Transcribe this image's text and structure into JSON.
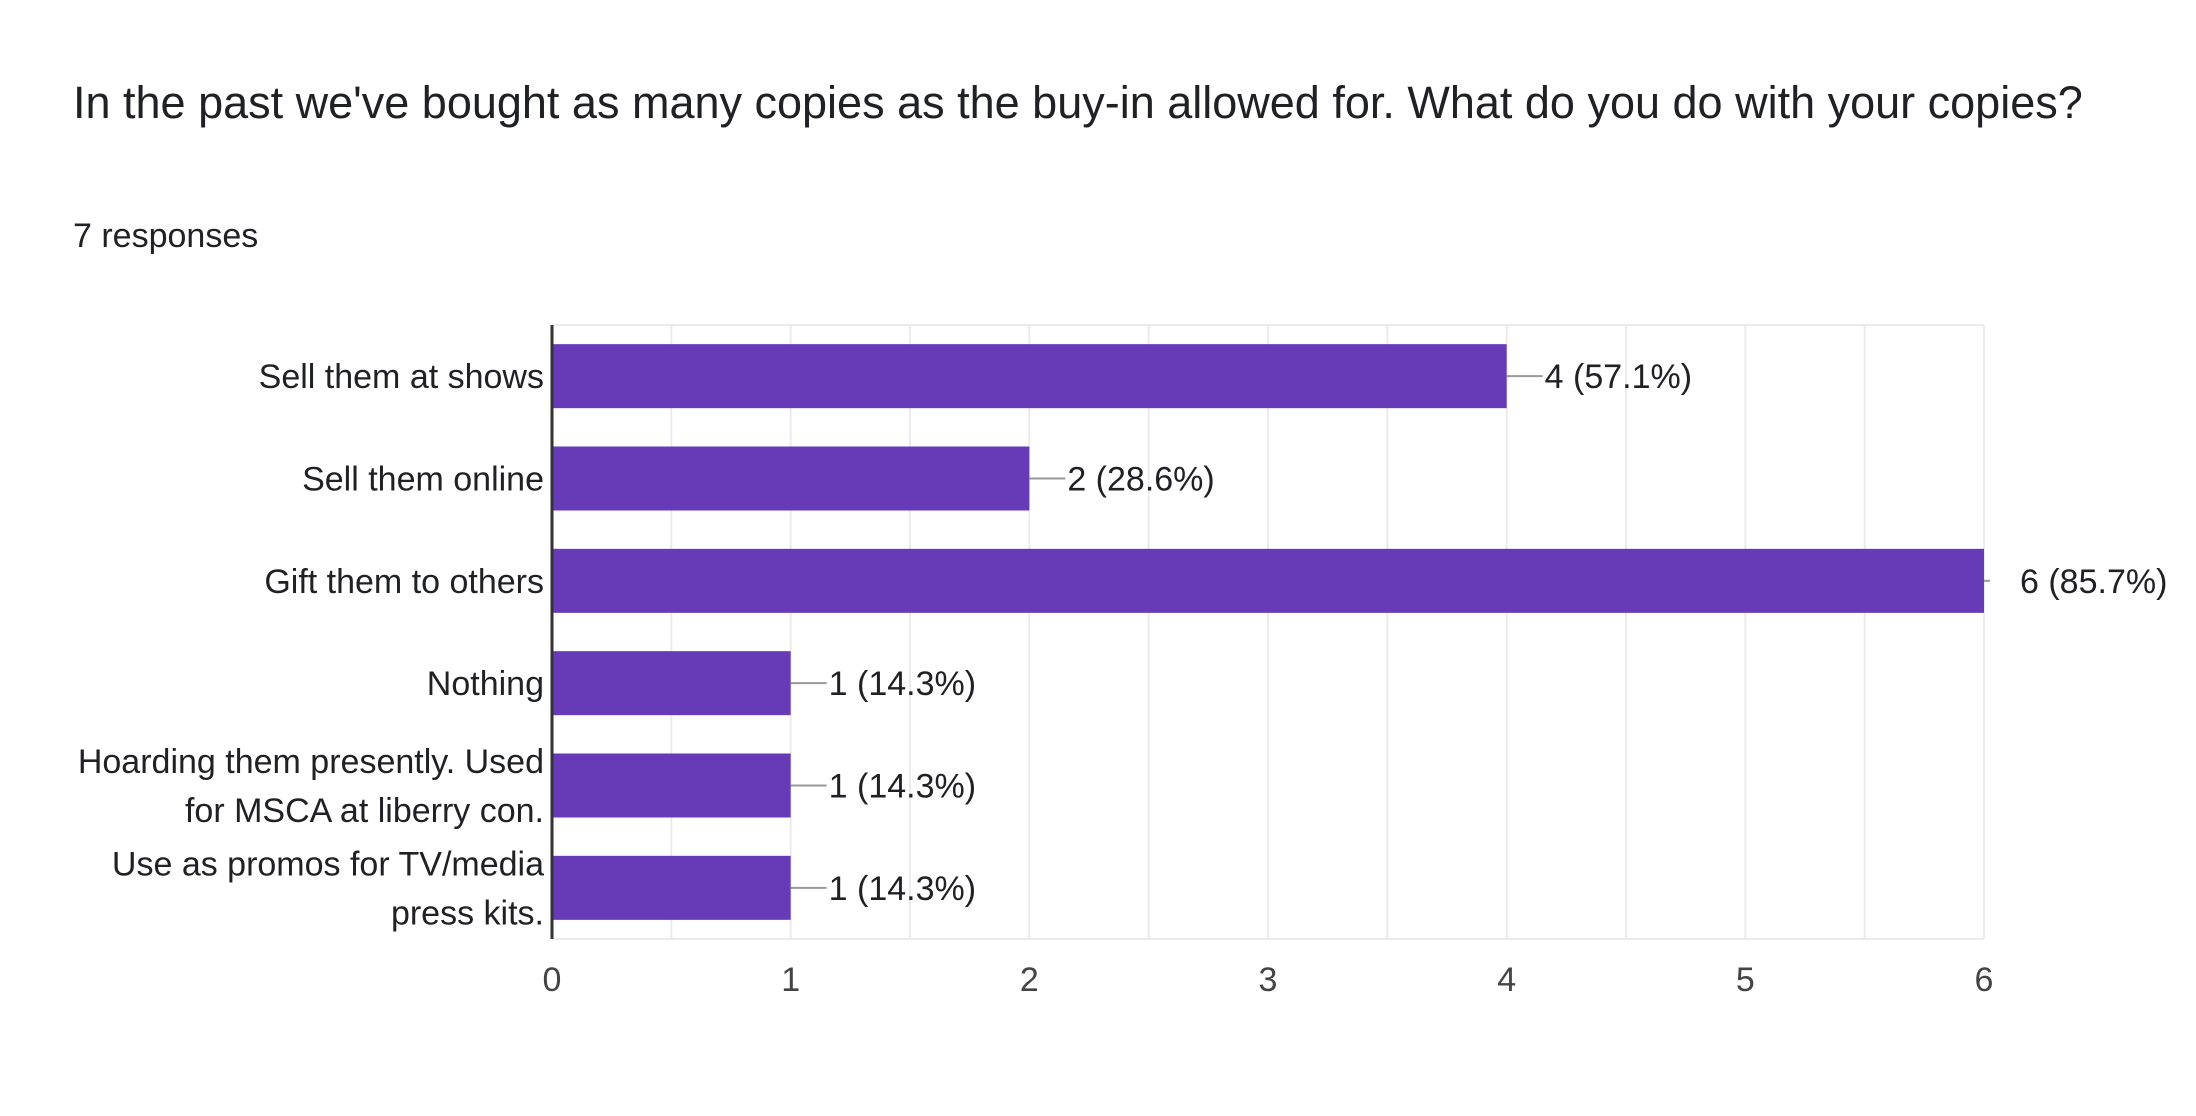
{
  "question": {
    "title": "In the past we've bought as many copies as the buy-in allowed for. What do you do with your copies?",
    "responses": "7 responses"
  },
  "colors": {
    "bar": "#673ab7",
    "grid": "#ebebeb",
    "axis": "#333333",
    "leader": "#999999",
    "text": "#202124",
    "tick_text": "#444444"
  },
  "chart_data": {
    "type": "bar",
    "orientation": "horizontal",
    "categories": [
      [
        "Sell them at shows"
      ],
      [
        "Sell them online"
      ],
      [
        "Gift them to others"
      ],
      [
        "Nothing"
      ],
      [
        "Hoarding them presently. Used",
        "for MSCA at liberry con."
      ],
      [
        "Use as promos for TV/media",
        "press kits."
      ]
    ],
    "values": [
      4,
      2,
      6,
      1,
      1,
      1
    ],
    "labels": [
      "4 (57.1%)",
      "2 (28.6%)",
      "6 (85.7%)",
      "1 (14.3%)",
      "1 (14.3%)",
      "1 (14.3%)"
    ],
    "xlim": [
      0,
      6
    ],
    "xticks": [
      "0",
      "1",
      "2",
      "3",
      "4",
      "5",
      "6"
    ],
    "grid": true
  }
}
